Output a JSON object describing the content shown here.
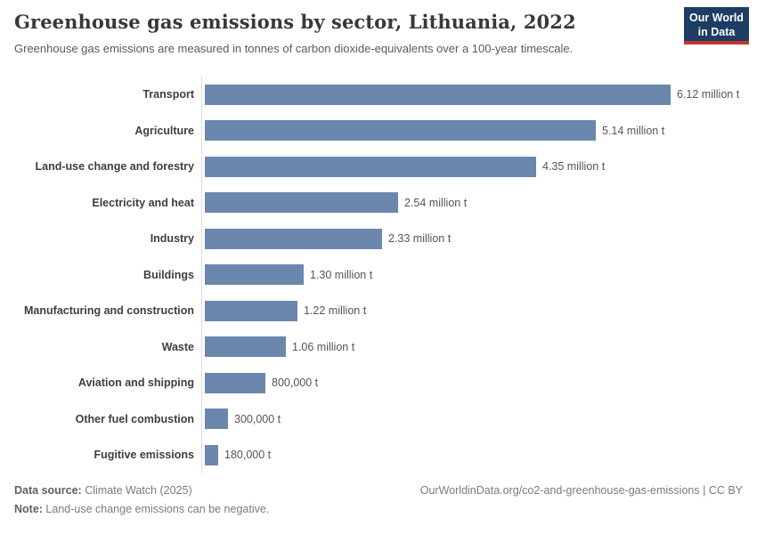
{
  "header": {
    "title": "Greenhouse gas emissions by sector, Lithuania, 2022",
    "subtitle": "Greenhouse gas emissions are measured in tonnes of carbon dioxide-equivalents over a 100-year timescale.",
    "logo": {
      "line1": "Our World",
      "line2": "in Data",
      "bg_color": "#1d3d63",
      "accent_color": "#c0362e"
    }
  },
  "chart_data": {
    "type": "bar",
    "orientation": "horizontal",
    "title": "Greenhouse gas emissions by sector, Lithuania, 2022",
    "unit": "tonnes of carbon dioxide-equivalents",
    "categories": [
      "Transport",
      "Agriculture",
      "Land-use change and forestry",
      "Electricity and heat",
      "Industry",
      "Buildings",
      "Manufacturing and construction",
      "Waste",
      "Aviation and shipping",
      "Other fuel combustion",
      "Fugitive emissions"
    ],
    "values": [
      6120000,
      5140000,
      4350000,
      2540000,
      2330000,
      1300000,
      1220000,
      1060000,
      800000,
      300000,
      180000
    ],
    "value_labels": [
      "6.12 million t",
      "5.14 million t",
      "4.35 million t",
      "2.54 million t",
      "2.33 million t",
      "1.30 million t",
      "1.22 million t",
      "1.06 million t",
      "800,000 t",
      "300,000 t",
      "180,000 t"
    ],
    "xlim": [
      0,
      6120000
    ],
    "bar_color": "#6c87ad",
    "axis_color": "#dcdcdc",
    "grid": false,
    "legend": false
  },
  "footer": {
    "source_label": "Data source:",
    "source_text": " Climate Watch (2025)",
    "note_label": "Note:",
    "note_text": " Land-use change emissions can be negative.",
    "link_text": "OurWorldinData.org/co2-and-greenhouse-gas-emissions | CC BY"
  }
}
